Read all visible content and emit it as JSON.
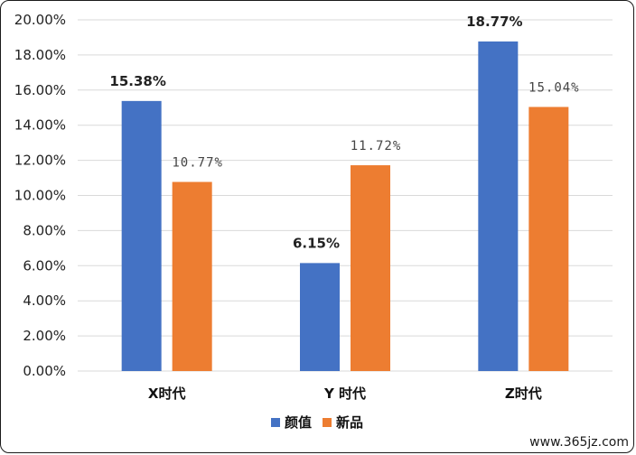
{
  "chart_data": {
    "type": "bar",
    "categories": [
      "X时代",
      "Y 时代",
      "Z时代"
    ],
    "series": [
      {
        "name": "颜值",
        "color": "#4472C4",
        "values": [
          15.38,
          6.15,
          18.77
        ],
        "labels": [
          "15.38%",
          "6.15%",
          "18.77%"
        ]
      },
      {
        "name": "新品",
        "color": "#ED7D31",
        "values": [
          10.77,
          11.72,
          15.04
        ],
        "labels": [
          "10.77%",
          "11.72%",
          "15.04%"
        ]
      }
    ],
    "yticks": [
      "0.00%",
      "2.00%",
      "4.00%",
      "6.00%",
      "8.00%",
      "10.00%",
      "12.00%",
      "14.00%",
      "16.00%",
      "18.00%",
      "20.00%"
    ],
    "ylim": [
      0,
      20
    ],
    "grid": true,
    "legend_position": "bottom"
  },
  "watermark": "www.365jz.com"
}
